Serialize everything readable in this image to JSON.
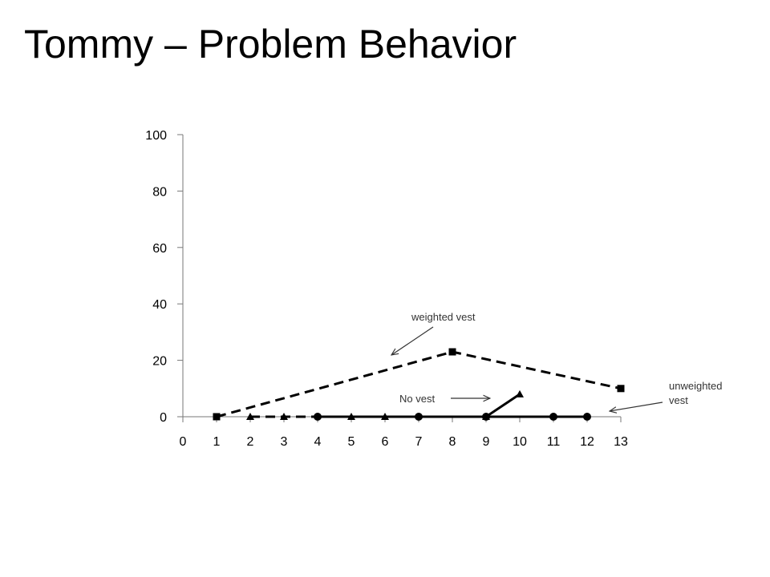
{
  "title": "Tommy – Problem Behavior",
  "chart_data": {
    "type": "line",
    "xlim": [
      0,
      13
    ],
    "ylim": [
      0,
      100
    ],
    "x_ticks": [
      "0",
      "1",
      "2",
      "3",
      "4",
      "5",
      "6",
      "7",
      "8",
      "9",
      "10",
      "11",
      "12",
      "13"
    ],
    "y_ticks": [
      "0",
      "20",
      "40",
      "60",
      "80",
      "100"
    ],
    "grid": false,
    "legend": "none",
    "series": [
      {
        "marker": "square",
        "line_style": "dashed",
        "points": [
          {
            "x": 1,
            "y": 0
          },
          {
            "x": 8,
            "y": 23
          },
          {
            "x": 13,
            "y": 10
          }
        ]
      },
      {
        "marker": "triangle",
        "line_style": "dashed",
        "points": [
          {
            "x": 2,
            "y": 0
          },
          {
            "x": 3,
            "y": 0
          },
          {
            "x": 5,
            "y": 0
          },
          {
            "x": 6,
            "y": 0
          }
        ]
      },
      {
        "marker": "circle",
        "line_style": "solid",
        "points": [
          {
            "x": 4,
            "y": 0
          },
          {
            "x": 7,
            "y": 0
          },
          {
            "x": 9,
            "y": 0
          },
          {
            "x": 11,
            "y": 0
          },
          {
            "x": 12,
            "y": 0
          }
        ]
      },
      {
        "marker": "triangle",
        "line_style": "solid",
        "points": [
          {
            "x": 9,
            "y": 0
          },
          {
            "x": 10,
            "y": 8
          }
        ]
      }
    ],
    "annotations": [
      {
        "text": "weighted vest"
      },
      {
        "text": "No vest"
      },
      {
        "text": "unweighted vest",
        "lines": [
          "unweighted",
          "vest"
        ]
      }
    ]
  }
}
